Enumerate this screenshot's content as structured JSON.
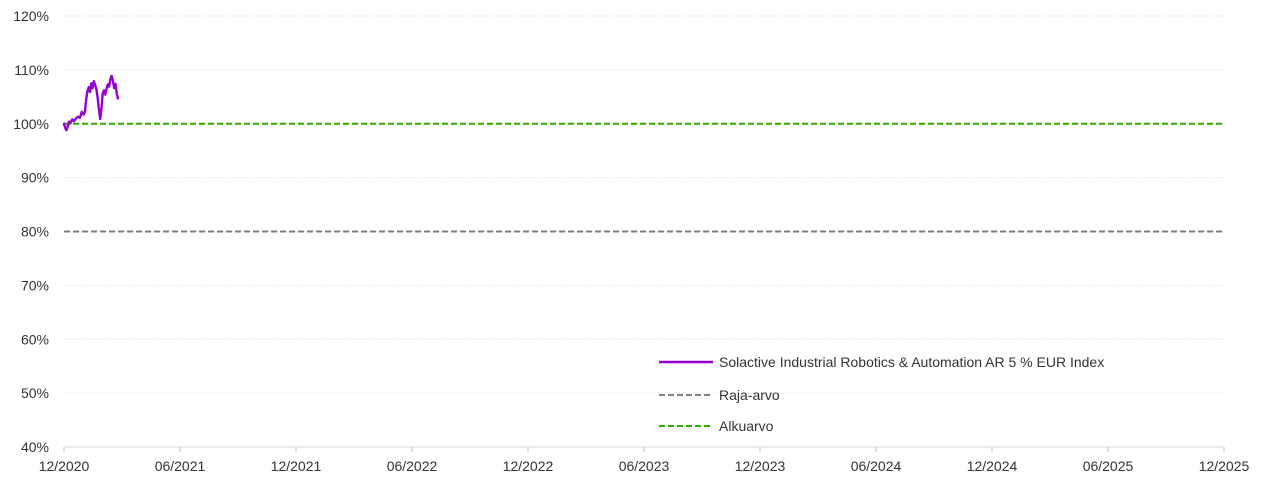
{
  "chart_data": {
    "type": "line",
    "title": "",
    "xlabel": "",
    "ylabel": "",
    "x_ticks": [
      "12/2020",
      "06/2021",
      "12/2021",
      "06/2022",
      "12/2022",
      "06/2023",
      "12/2023",
      "06/2024",
      "12/2024",
      "06/2025",
      "12/2025"
    ],
    "x_range": [
      "2020-12-01",
      "2025-12-01"
    ],
    "y_ticks": [
      "40%",
      "50%",
      "60%",
      "70%",
      "80%",
      "90%",
      "100%",
      "110%",
      "120%"
    ],
    "ylim": [
      40,
      120
    ],
    "y_unit": "%",
    "grid": "horizontal dotted",
    "legend_position": "bottom-right",
    "series": [
      {
        "name": "Solactive Industrial Robotics & Automation AR 5 % EUR Index",
        "color": "#9400d3",
        "style": "solid",
        "points": [
          [
            "2020-12-01",
            100.0
          ],
          [
            "2020-12-03",
            99.2
          ],
          [
            "2020-12-05",
            98.8
          ],
          [
            "2020-12-07",
            99.6
          ],
          [
            "2020-12-09",
            100.4
          ],
          [
            "2020-12-11",
            100.1
          ],
          [
            "2020-12-14",
            100.8
          ],
          [
            "2020-12-17",
            100.5
          ],
          [
            "2020-12-20",
            101.0
          ],
          [
            "2020-12-23",
            101.3
          ],
          [
            "2020-12-26",
            101.1
          ],
          [
            "2020-12-29",
            102.2
          ],
          [
            "2021-01-01",
            101.7
          ],
          [
            "2021-01-03",
            102.3
          ],
          [
            "2021-01-05",
            104.6
          ],
          [
            "2021-01-07",
            106.1
          ],
          [
            "2021-01-09",
            106.8
          ],
          [
            "2021-01-11",
            105.9
          ],
          [
            "2021-01-13",
            107.5
          ],
          [
            "2021-01-15",
            106.6
          ],
          [
            "2021-01-17",
            107.9
          ],
          [
            "2021-01-19",
            107.2
          ],
          [
            "2021-01-21",
            106.4
          ],
          [
            "2021-01-23",
            104.8
          ],
          [
            "2021-01-25",
            102.6
          ],
          [
            "2021-01-27",
            100.9
          ],
          [
            "2021-01-29",
            102.8
          ],
          [
            "2021-01-31",
            105.7
          ],
          [
            "2021-02-02",
            106.2
          ],
          [
            "2021-02-04",
            105.4
          ],
          [
            "2021-02-06",
            106.5
          ],
          [
            "2021-02-08",
            107.3
          ],
          [
            "2021-02-10",
            106.9
          ],
          [
            "2021-02-12",
            108.3
          ],
          [
            "2021-02-14",
            108.9
          ],
          [
            "2021-02-16",
            108.0
          ],
          [
            "2021-02-18",
            106.6
          ],
          [
            "2021-02-20",
            107.4
          ],
          [
            "2021-02-22",
            105.6
          ],
          [
            "2021-02-24",
            104.7
          ]
        ]
      },
      {
        "name": "Raja-arvo",
        "color": "#7f7f7f",
        "style": "dashed",
        "points": [
          [
            "2020-12-01",
            80
          ],
          [
            "2025-12-01",
            80
          ]
        ]
      },
      {
        "name": "Alkuarvo",
        "color": "#33aa00",
        "style": "dashed",
        "points": [
          [
            "2020-12-01",
            100
          ],
          [
            "2025-12-01",
            100
          ]
        ]
      }
    ]
  }
}
